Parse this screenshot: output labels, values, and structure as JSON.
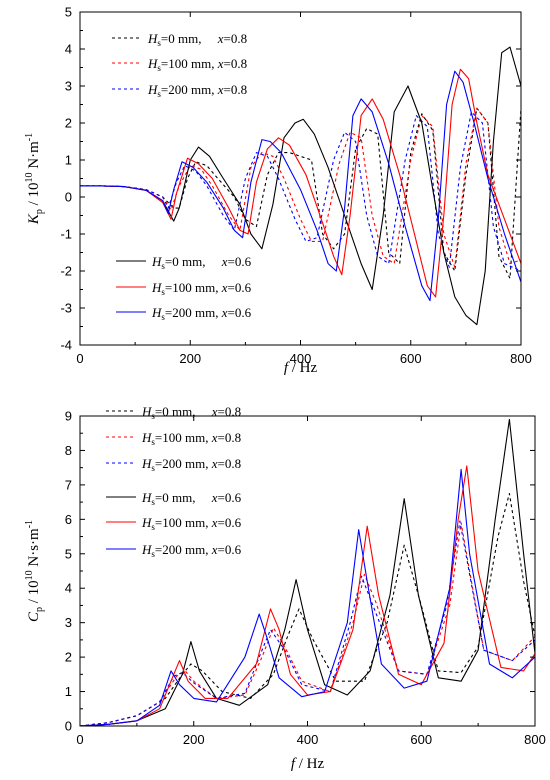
{
  "chart_data": [
    {
      "type": "line",
      "ylabel": {
        "sym": "K",
        "sub": "p",
        "unit": " / 10",
        "exp": "10",
        "rest": " N·m",
        "rest_exp": "-1"
      },
      "xlabel": "f / Hz",
      "xlim": [
        0,
        800
      ],
      "ylim": [
        -4,
        5
      ],
      "xticks": [
        0,
        200,
        400,
        600,
        800
      ],
      "yticks": [
        -4,
        -3,
        -2,
        -1,
        0,
        1,
        2,
        3,
        4,
        5
      ],
      "legend_top": "top-left",
      "legend_bottom": "bottom-center",
      "series": [
        {
          "name": "Hs=0 mm, x=0.8",
          "legend": {
            "h": "H",
            "s": "s",
            "rest": "=0 mm,     ",
            "x": "x",
            "val": "=0.8"
          },
          "color": "#000000",
          "dash": "3,3",
          "group": 1,
          "x": [
            0,
            40,
            80,
            120,
            150,
            170,
            180,
            195,
            210,
            230,
            250,
            280,
            300,
            320,
            340,
            360,
            380,
            420,
            440,
            460,
            480,
            500,
            520,
            540,
            560,
            580,
            600,
            620,
            640,
            660,
            680,
            700,
            720,
            740,
            760,
            780,
            800
          ],
          "y": [
            0.3,
            0.3,
            0.28,
            0.2,
            0.0,
            -0.3,
            -0.3,
            0.5,
            0.95,
            0.85,
            0.5,
            0.0,
            -0.6,
            -0.8,
            0.6,
            1.2,
            1.2,
            1.0,
            -1.0,
            -1.4,
            -1.0,
            1.3,
            1.85,
            1.7,
            -1.5,
            -1.8,
            1.2,
            2.25,
            1.8,
            -1.5,
            -2.0,
            0.6,
            2.4,
            2.0,
            -1.6,
            -2.2,
            2.4
          ]
        },
        {
          "name": "Hs=100 mm, x=0.8",
          "legend": {
            "h": "H",
            "s": "s",
            "rest": "=100 mm, ",
            "x": "x",
            "val": "=0.8"
          },
          "color": "#ff0000",
          "dash": "3,3",
          "group": 1,
          "x": [
            0,
            40,
            80,
            120,
            150,
            165,
            180,
            200,
            220,
            240,
            270,
            290,
            310,
            330,
            350,
            370,
            400,
            420,
            440,
            470,
            490,
            510,
            530,
            550,
            570,
            600,
            620,
            640,
            660,
            680,
            700,
            720,
            740,
            760,
            780,
            800
          ],
          "y": [
            0.3,
            0.3,
            0.28,
            0.2,
            0.0,
            -0.35,
            0.3,
            0.85,
            0.75,
            0.3,
            -0.5,
            -0.9,
            0.8,
            1.2,
            1.1,
            0.5,
            -0.6,
            -1.2,
            -1.2,
            0.9,
            1.75,
            1.6,
            -0.5,
            -1.6,
            -1.8,
            1.0,
            2.2,
            1.9,
            -1.0,
            -1.9,
            0.9,
            2.4,
            2.0,
            -0.8,
            -1.8,
            -1.7
          ]
        },
        {
          "name": "Hs=200 mm, x=0.8",
          "legend": {
            "h": "H",
            "s": "s",
            "rest": "=200 mm, ",
            "x": "x",
            "val": "=0.8"
          },
          "color": "#0000ff",
          "dash": "3,3",
          "group": 1,
          "x": [
            0,
            40,
            80,
            120,
            150,
            160,
            175,
            190,
            210,
            230,
            260,
            280,
            300,
            320,
            340,
            360,
            390,
            410,
            430,
            460,
            480,
            500,
            520,
            540,
            560,
            590,
            610,
            630,
            650,
            670,
            690,
            710,
            730,
            750,
            770,
            800
          ],
          "y": [
            0.3,
            0.3,
            0.28,
            0.2,
            0.0,
            -0.3,
            0.4,
            0.85,
            0.7,
            0.3,
            -0.5,
            -0.9,
            0.5,
            1.2,
            1.1,
            0.5,
            -0.6,
            -1.2,
            -1.1,
            1.0,
            1.75,
            1.5,
            -0.5,
            -1.6,
            -1.8,
            1.0,
            2.2,
            1.9,
            -1.0,
            -1.9,
            0.8,
            2.3,
            2.0,
            -0.8,
            -1.8,
            -2.0
          ]
        },
        {
          "name": "Hs=0 mm, x=0.6",
          "legend": {
            "h": "H",
            "s": "s",
            "rest": "=0 mm,     ",
            "x": "x",
            "val": "=0.6"
          },
          "color": "#000000",
          "dash": "",
          "group": 2,
          "x": [
            0,
            40,
            80,
            120,
            150,
            170,
            180,
            200,
            215,
            235,
            260,
            290,
            310,
            330,
            350,
            370,
            390,
            405,
            425,
            450,
            480,
            510,
            530,
            550,
            570,
            595,
            620,
            640,
            660,
            680,
            700,
            720,
            735,
            750,
            765,
            780,
            800
          ],
          "y": [
            0.3,
            0.3,
            0.28,
            0.18,
            -0.1,
            -0.65,
            -0.3,
            1.0,
            1.35,
            1.1,
            0.5,
            -0.2,
            -1.0,
            -1.4,
            -0.2,
            1.6,
            2.0,
            2.1,
            1.7,
            0.8,
            -0.5,
            -1.8,
            -2.5,
            -0.5,
            2.3,
            3.0,
            2.0,
            0.2,
            -1.5,
            -2.7,
            -3.2,
            -3.45,
            -2.0,
            1.5,
            3.9,
            4.05,
            3.0
          ]
        },
        {
          "name": "Hs=100 mm, x=0.6",
          "legend": {
            "h": "H",
            "s": "s",
            "rest": "=100 mm, ",
            "x": "x",
            "val": "=0.6"
          },
          "color": "#ff0000",
          "dash": "",
          "group": 2,
          "x": [
            0,
            40,
            80,
            120,
            150,
            165,
            175,
            195,
            215,
            240,
            270,
            290,
            305,
            320,
            340,
            360,
            380,
            410,
            440,
            460,
            475,
            490,
            510,
            530,
            550,
            580,
            610,
            630,
            645,
            660,
            675,
            690,
            705,
            720,
            740,
            770,
            800
          ],
          "y": [
            0.3,
            0.3,
            0.28,
            0.18,
            -0.15,
            -0.6,
            0.1,
            1.05,
            0.9,
            0.5,
            -0.3,
            -0.9,
            -1.0,
            0.4,
            1.3,
            1.6,
            1.4,
            0.6,
            -0.7,
            -1.6,
            -2.1,
            -0.5,
            2.2,
            2.65,
            2.1,
            0.6,
            -1.2,
            -2.4,
            -2.7,
            -0.5,
            2.5,
            3.45,
            3.2,
            2.0,
            0.6,
            -0.6,
            -1.8
          ]
        },
        {
          "name": "Hs=200 mm, x=0.6",
          "legend": {
            "h": "H",
            "s": "s",
            "rest": "=200 mm, ",
            "x": "x",
            "val": "=0.6"
          },
          "color": "#0000ff",
          "dash": "",
          "group": 2,
          "x": [
            0,
            40,
            80,
            120,
            150,
            160,
            170,
            185,
            205,
            230,
            260,
            280,
            295,
            310,
            330,
            345,
            365,
            400,
            430,
            450,
            465,
            480,
            495,
            510,
            530,
            560,
            590,
            620,
            635,
            650,
            665,
            680,
            695,
            715,
            740,
            770,
            800
          ],
          "y": [
            0.3,
            0.3,
            0.28,
            0.18,
            -0.1,
            -0.45,
            0.2,
            0.95,
            0.8,
            0.4,
            -0.3,
            -0.9,
            -1.1,
            0.4,
            1.55,
            1.5,
            1.2,
            0.2,
            -0.9,
            -1.8,
            -2.0,
            -0.3,
            2.2,
            2.65,
            2.3,
            0.9,
            -0.8,
            -2.4,
            -2.8,
            -0.6,
            2.5,
            3.4,
            3.1,
            2.0,
            0.5,
            -1.0,
            -2.3
          ]
        }
      ]
    },
    {
      "type": "line",
      "ylabel": {
        "sym": "C",
        "sub": "p",
        "unit": " / 10",
        "exp": "10",
        "rest": " N·s·m",
        "rest_exp": "-1"
      },
      "xlabel": "f / Hz",
      "xlim": [
        0,
        800
      ],
      "ylim": [
        0,
        9
      ],
      "xticks": [
        0,
        200,
        400,
        600,
        800
      ],
      "yticks": [
        0,
        1,
        2,
        3,
        4,
        5,
        6,
        7,
        8,
        9
      ],
      "legend_top": "top-left",
      "series": [
        {
          "name": "Hs=0 mm, x=0.8",
          "legend": {
            "h": "H",
            "s": "s",
            "rest": "=0 mm,     ",
            "x": "x",
            "val": "=0.8"
          },
          "color": "#000000",
          "dash": "3,3",
          "group": 1,
          "x": [
            0,
            50,
            100,
            150,
            180,
            195,
            215,
            250,
            300,
            340,
            365,
            385,
            410,
            450,
            500,
            540,
            570,
            600,
            630,
            670,
            700,
            735,
            755,
            780,
            800
          ],
          "y": [
            0,
            0.1,
            0.3,
            0.8,
            1.5,
            1.8,
            1.6,
            1.0,
            0.8,
            1.5,
            2.6,
            3.4,
            2.5,
            1.3,
            1.3,
            3.0,
            5.25,
            3.5,
            1.6,
            1.55,
            2.3,
            5.5,
            6.75,
            4.2,
            2.6
          ]
        },
        {
          "name": "Hs=100 mm, x=0.8",
          "legend": {
            "h": "H",
            "s": "s",
            "rest": "=100 mm, ",
            "x": "x",
            "val": "=0.8"
          },
          "color": "#ff0000",
          "dash": "3,3",
          "group": 1,
          "x": [
            0,
            50,
            100,
            140,
            170,
            185,
            200,
            240,
            290,
            320,
            340,
            360,
            390,
            440,
            480,
            500,
            520,
            560,
            610,
            650,
            670,
            685,
            710,
            760,
            800
          ],
          "y": [
            0,
            0.1,
            0.3,
            0.7,
            1.45,
            1.6,
            1.3,
            0.8,
            0.9,
            2.0,
            2.85,
            2.3,
            1.3,
            1.0,
            3.0,
            4.4,
            3.6,
            1.6,
            1.5,
            3.5,
            5.9,
            4.5,
            2.2,
            1.9,
            2.6
          ]
        },
        {
          "name": "Hs=200 mm, x=0.8",
          "legend": {
            "h": "H",
            "s": "s",
            "rest": "=200 mm, ",
            "x": "x",
            "val": "=0.8"
          },
          "color": "#0000ff",
          "dash": "3,3",
          "group": 1,
          "x": [
            0,
            50,
            100,
            140,
            165,
            180,
            200,
            240,
            290,
            315,
            335,
            360,
            390,
            440,
            475,
            495,
            515,
            560,
            610,
            645,
            668,
            685,
            710,
            760,
            800
          ],
          "y": [
            0,
            0.1,
            0.3,
            0.7,
            1.45,
            1.55,
            1.25,
            0.8,
            0.95,
            2.0,
            2.8,
            2.2,
            1.2,
            1.0,
            3.0,
            4.35,
            3.5,
            1.6,
            1.5,
            3.5,
            5.95,
            4.4,
            2.2,
            1.9,
            2.5
          ]
        },
        {
          "name": "Hs=0 mm, x=0.6",
          "legend": {
            "h": "H",
            "s": "s",
            "rest": "=0 mm,     ",
            "x": "x",
            "val": "=0.6"
          },
          "color": "#000000",
          "dash": "",
          "group": 2,
          "x": [
            0,
            50,
            100,
            150,
            180,
            195,
            210,
            240,
            280,
            330,
            360,
            380,
            400,
            430,
            470,
            510,
            545,
            570,
            595,
            630,
            670,
            700,
            730,
            755,
            780,
            800
          ],
          "y": [
            0,
            0.05,
            0.15,
            0.5,
            1.5,
            2.45,
            1.6,
            0.8,
            0.6,
            1.2,
            2.8,
            4.25,
            2.8,
            1.2,
            0.9,
            1.6,
            3.8,
            6.6,
            3.8,
            1.4,
            1.3,
            2.2,
            6.0,
            8.9,
            5.0,
            2.1
          ]
        },
        {
          "name": "Hs=100 mm, x=0.6",
          "legend": {
            "h": "H",
            "s": "s",
            "rest": "=100 mm, ",
            "x": "x",
            "val": "=0.6"
          },
          "color": "#ff0000",
          "dash": "",
          "group": 2,
          "x": [
            0,
            50,
            100,
            140,
            165,
            175,
            190,
            220,
            260,
            310,
            335,
            350,
            370,
            400,
            440,
            480,
            505,
            525,
            560,
            600,
            640,
            665,
            680,
            700,
            740,
            780,
            800
          ],
          "y": [
            0,
            0.05,
            0.15,
            0.5,
            1.5,
            1.9,
            1.3,
            0.8,
            0.8,
            1.8,
            3.4,
            2.8,
            1.5,
            0.9,
            1.0,
            2.8,
            5.8,
            3.8,
            1.5,
            1.2,
            2.4,
            6.0,
            7.55,
            4.5,
            1.7,
            1.6,
            2.1
          ]
        },
        {
          "name": "Hs=200 mm, x=0.6",
          "legend": {
            "h": "H",
            "s": "s",
            "rest": "=200 mm, ",
            "x": "x",
            "val": "=0.6"
          },
          "color": "#0000ff",
          "dash": "",
          "group": 2,
          "x": [
            0,
            50,
            100,
            140,
            160,
            175,
            200,
            240,
            290,
            315,
            330,
            350,
            390,
            430,
            470,
            490,
            505,
            530,
            570,
            610,
            650,
            670,
            685,
            720,
            760,
            800
          ],
          "y": [
            0,
            0.05,
            0.15,
            0.6,
            1.6,
            1.2,
            0.8,
            0.7,
            2.0,
            3.25,
            2.5,
            1.4,
            0.85,
            1.0,
            3.0,
            5.7,
            4.2,
            1.8,
            1.1,
            1.3,
            4.0,
            7.45,
            5.0,
            1.8,
            1.4,
            2.0
          ]
        }
      ]
    }
  ]
}
